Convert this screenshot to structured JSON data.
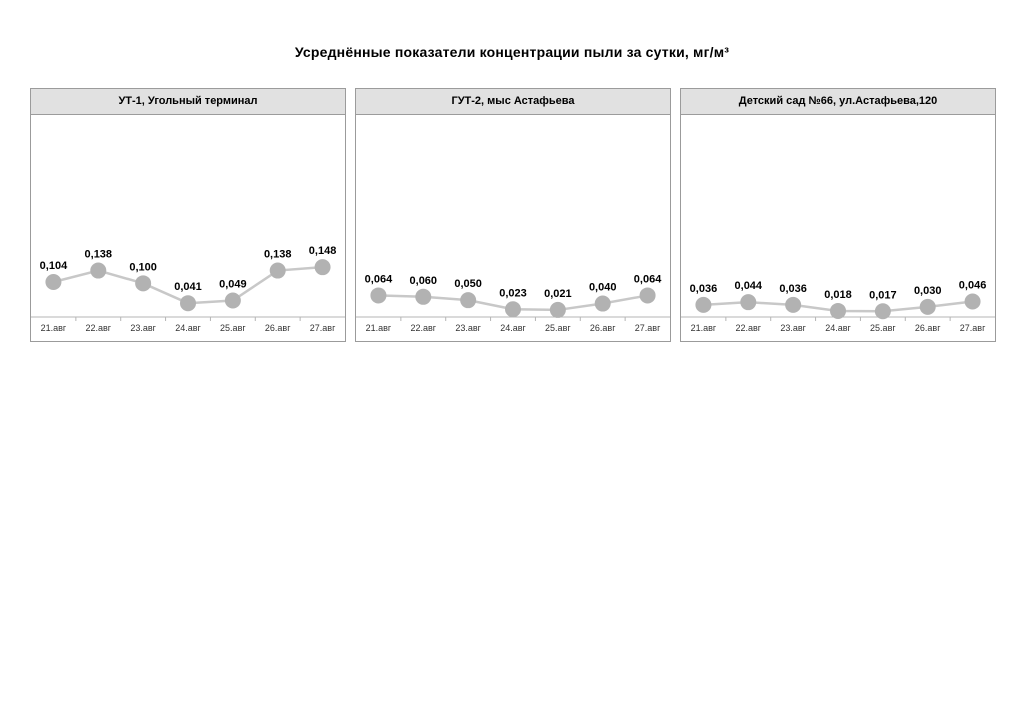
{
  "page_title": "Усреднённые показатели концентрации пыли за сутки, мг/м³",
  "chart_data": [
    {
      "type": "line",
      "title": "УТ-1, Угольный терминал",
      "categories": [
        "21.авг",
        "22.авг",
        "23.авг",
        "24.авг",
        "25.авг",
        "26.авг",
        "27.авг"
      ],
      "values": [
        0.104,
        0.138,
        0.1,
        0.041,
        0.049,
        0.138,
        0.148
      ],
      "point_labels": [
        "0,104",
        "0,138",
        "0,100",
        "0,041",
        "0,049",
        "0,138",
        "0,148"
      ],
      "ylim": [
        0,
        0.6
      ],
      "grid": false,
      "legend": "none"
    },
    {
      "type": "line",
      "title": "ГУТ-2, мыс Астафьева",
      "categories": [
        "21.авг",
        "22.авг",
        "23.авг",
        "24.авг",
        "25.авг",
        "26.авг",
        "27.авг"
      ],
      "values": [
        0.064,
        0.06,
        0.05,
        0.023,
        0.021,
        0.04,
        0.064
      ],
      "point_labels": [
        "0,064",
        "0,060",
        "0,050",
        "0,023",
        "0,021",
        "0,040",
        "0,064"
      ],
      "ylim": [
        0,
        0.6
      ],
      "grid": false,
      "legend": "none"
    },
    {
      "type": "line",
      "title": "Детский сад №66, ул.Астафьева,120",
      "categories": [
        "21.авг",
        "22.авг",
        "23.авг",
        "24.авг",
        "25.авг",
        "26.авг",
        "27.авг"
      ],
      "values": [
        0.036,
        0.044,
        0.036,
        0.018,
        0.017,
        0.03,
        0.046
      ],
      "point_labels": [
        "0,036",
        "0,044",
        "0,036",
        "0,018",
        "0,017",
        "0,030",
        "0,046"
      ],
      "ylim": [
        0,
        0.6
      ],
      "grid": false,
      "legend": "none"
    }
  ],
  "colors": {
    "marker": "#b2b2b2",
    "line": "#c8c8c8",
    "header_bg": "#e1e1e1",
    "panel_border": "#9b9b9b",
    "axis": "#b5b5b5",
    "tick_label": "#333333",
    "value_label": "#000000"
  }
}
